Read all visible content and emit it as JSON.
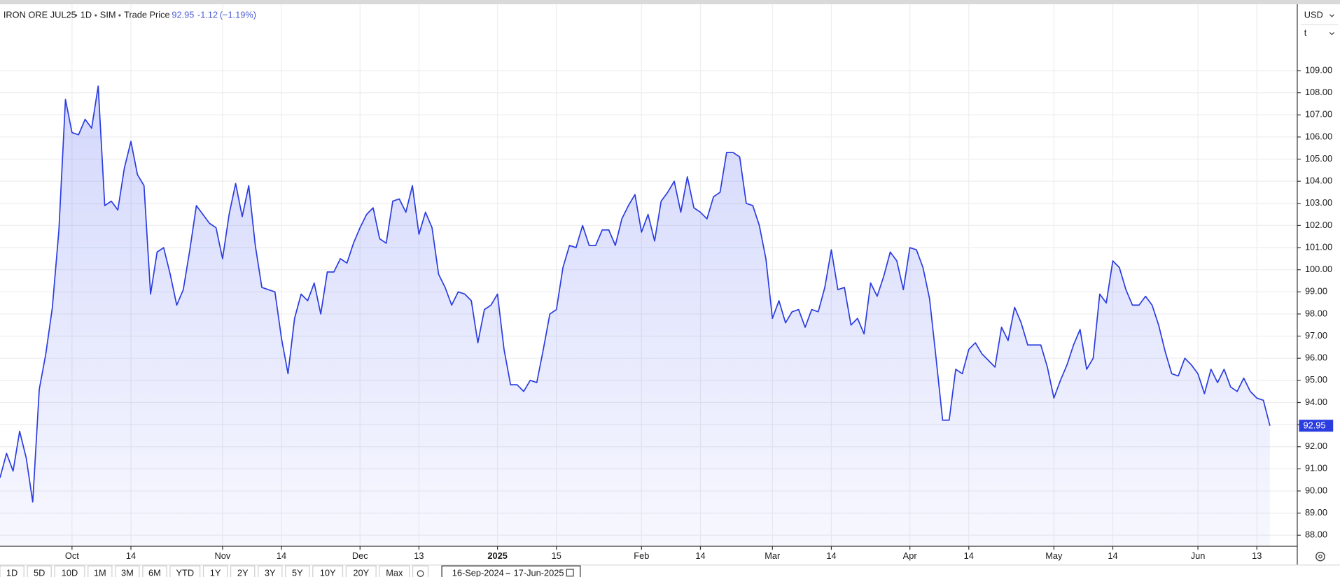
{
  "header": {
    "symbol": "IRON ORE JUL25",
    "interval": "1D",
    "source": "SIM",
    "price_type": "Trade Price",
    "change": "-1.12",
    "change_pct": "(−1.19%)"
  },
  "currency": "USD",
  "unit": "t",
  "toolbar": {
    "ranges": [
      "1D",
      "5D",
      "10D",
      "1M",
      "3M",
      "6M",
      "YTD",
      "1Y",
      "2Y",
      "3Y",
      "5Y",
      "10Y",
      "20Y",
      "Max"
    ],
    "date_from": "16-Sep-2024",
    "date_to": "17-Jun-2025"
  },
  "chart_data": {
    "type": "area",
    "color": "#2b3de0",
    "grid": true,
    "y_axis_side": "right",
    "ylim": [
      87.5,
      112
    ],
    "yticks": [
      {
        "value": 88,
        "label": "88.00"
      },
      {
        "value": 89,
        "label": "89.00"
      },
      {
        "value": 90,
        "label": "90.00"
      },
      {
        "value": 91,
        "label": "91.00"
      },
      {
        "value": 92,
        "label": "92.00"
      },
      {
        "value": 93,
        "label": "93.00"
      },
      {
        "value": 94,
        "label": "94.00"
      },
      {
        "value": 95,
        "label": "95.00"
      },
      {
        "value": 96,
        "label": "96.00"
      },
      {
        "value": 97,
        "label": "97.00"
      },
      {
        "value": 98,
        "label": "98.00"
      },
      {
        "value": 99,
        "label": "99.00"
      },
      {
        "value": 100,
        "label": "100.00"
      },
      {
        "value": 101,
        "label": "101.00"
      },
      {
        "value": 102,
        "label": "102.00"
      },
      {
        "value": 103,
        "label": "103.00"
      },
      {
        "value": 104,
        "label": "104.00"
      },
      {
        "value": 105,
        "label": "105.00"
      },
      {
        "value": 106,
        "label": "106.00"
      },
      {
        "value": 107,
        "label": "107.00"
      },
      {
        "value": 108,
        "label": "108.00"
      },
      {
        "value": 109,
        "label": "109.00"
      }
    ],
    "categories": [
      null,
      null,
      null,
      null,
      null,
      null,
      null,
      null,
      null,
      null,
      null,
      "Oct",
      null,
      null,
      null,
      null,
      null,
      null,
      null,
      null,
      "14",
      null,
      null,
      null,
      null,
      null,
      null,
      null,
      null,
      null,
      null,
      null,
      null,
      null,
      "Nov",
      null,
      null,
      null,
      null,
      null,
      null,
      null,
      null,
      "14",
      null,
      null,
      null,
      null,
      null,
      null,
      null,
      null,
      null,
      null,
      null,
      "Dec",
      null,
      null,
      null,
      null,
      null,
      null,
      null,
      null,
      "13",
      null,
      null,
      null,
      null,
      null,
      null,
      null,
      null,
      null,
      null,
      null,
      "2025",
      null,
      null,
      null,
      null,
      null,
      null,
      null,
      null,
      "15",
      null,
      null,
      null,
      null,
      null,
      null,
      null,
      null,
      null,
      null,
      null,
      null,
      "Feb",
      null,
      null,
      null,
      null,
      null,
      null,
      null,
      null,
      "14",
      null,
      null,
      null,
      null,
      null,
      null,
      null,
      null,
      null,
      null,
      "Mar",
      null,
      null,
      null,
      null,
      null,
      null,
      null,
      null,
      "14",
      null,
      null,
      null,
      null,
      null,
      null,
      null,
      null,
      null,
      null,
      null,
      "Apr",
      null,
      null,
      null,
      null,
      null,
      null,
      null,
      null,
      "14",
      null,
      null,
      null,
      null,
      null,
      null,
      null,
      null,
      null,
      null,
      null,
      null,
      "May",
      null,
      null,
      null,
      null,
      null,
      null,
      null,
      null,
      "14",
      null,
      null,
      null,
      null,
      null,
      null,
      null,
      null,
      null,
      null,
      null,
      null,
      "Jun",
      null,
      null,
      null,
      null,
      null,
      null,
      null,
      null,
      "13",
      null,
      null
    ],
    "values": [
      90.6,
      91.7,
      90.9,
      92.7,
      91.5,
      89.5,
      94.6,
      96.2,
      98.3,
      101.8,
      107.7,
      106.2,
      106.1,
      106.8,
      106.4,
      108.3,
      102.9,
      103.1,
      102.7,
      104.6,
      105.8,
      104.3,
      103.8,
      98.9,
      100.8,
      101.0,
      99.8,
      98.4,
      99.1,
      100.9,
      102.9,
      102.5,
      102.1,
      101.9,
      100.5,
      102.5,
      103.9,
      102.4,
      103.8,
      101.1,
      99.2,
      99.1,
      99.0,
      96.9,
      95.3,
      97.8,
      98.9,
      98.6,
      99.4,
      98.0,
      99.9,
      99.9,
      100.5,
      100.3,
      101.2,
      101.9,
      102.5,
      102.8,
      101.4,
      101.2,
      103.1,
      103.2,
      102.6,
      103.8,
      101.6,
      102.6,
      101.9,
      99.8,
      99.2,
      98.4,
      99.0,
      98.9,
      98.6,
      96.7,
      98.2,
      98.4,
      98.9,
      96.4,
      94.8,
      94.8,
      94.5,
      95.0,
      94.9,
      96.4,
      98.0,
      98.2,
      100.1,
      101.1,
      101.0,
      102.0,
      101.1,
      101.1,
      101.8,
      101.8,
      101.1,
      102.3,
      102.9,
      103.4,
      101.7,
      102.5,
      101.3,
      103.1,
      103.5,
      104.0,
      102.6,
      104.2,
      102.8,
      102.6,
      102.3,
      103.3,
      103.5,
      105.3,
      105.3,
      105.1,
      103.0,
      102.9,
      102.0,
      100.5,
      97.8,
      98.6,
      97.6,
      98.1,
      98.2,
      97.4,
      98.2,
      98.1,
      99.2,
      100.9,
      99.1,
      99.2,
      97.5,
      97.8,
      97.1,
      99.4,
      98.8,
      99.7,
      100.8,
      100.4,
      99.1,
      101.0,
      100.9,
      100.1,
      98.7,
      96.0,
      93.2,
      93.2,
      95.5,
      95.3,
      96.4,
      96.7,
      96.2,
      95.9,
      95.6,
      97.4,
      96.8,
      98.3,
      97.6,
      96.6,
      96.6,
      96.6,
      95.6,
      94.2,
      95.0,
      95.7,
      96.6,
      97.3,
      95.5,
      96.0,
      98.9,
      98.5,
      100.4,
      100.1,
      99.1,
      98.4,
      98.4,
      98.8,
      98.4,
      97.5,
      96.3,
      95.3,
      95.2,
      96.0,
      95.7,
      95.3,
      94.4,
      95.5,
      94.9,
      95.5,
      94.7,
      94.5,
      95.1,
      94.5,
      94.2,
      94.1,
      92.95
    ]
  }
}
